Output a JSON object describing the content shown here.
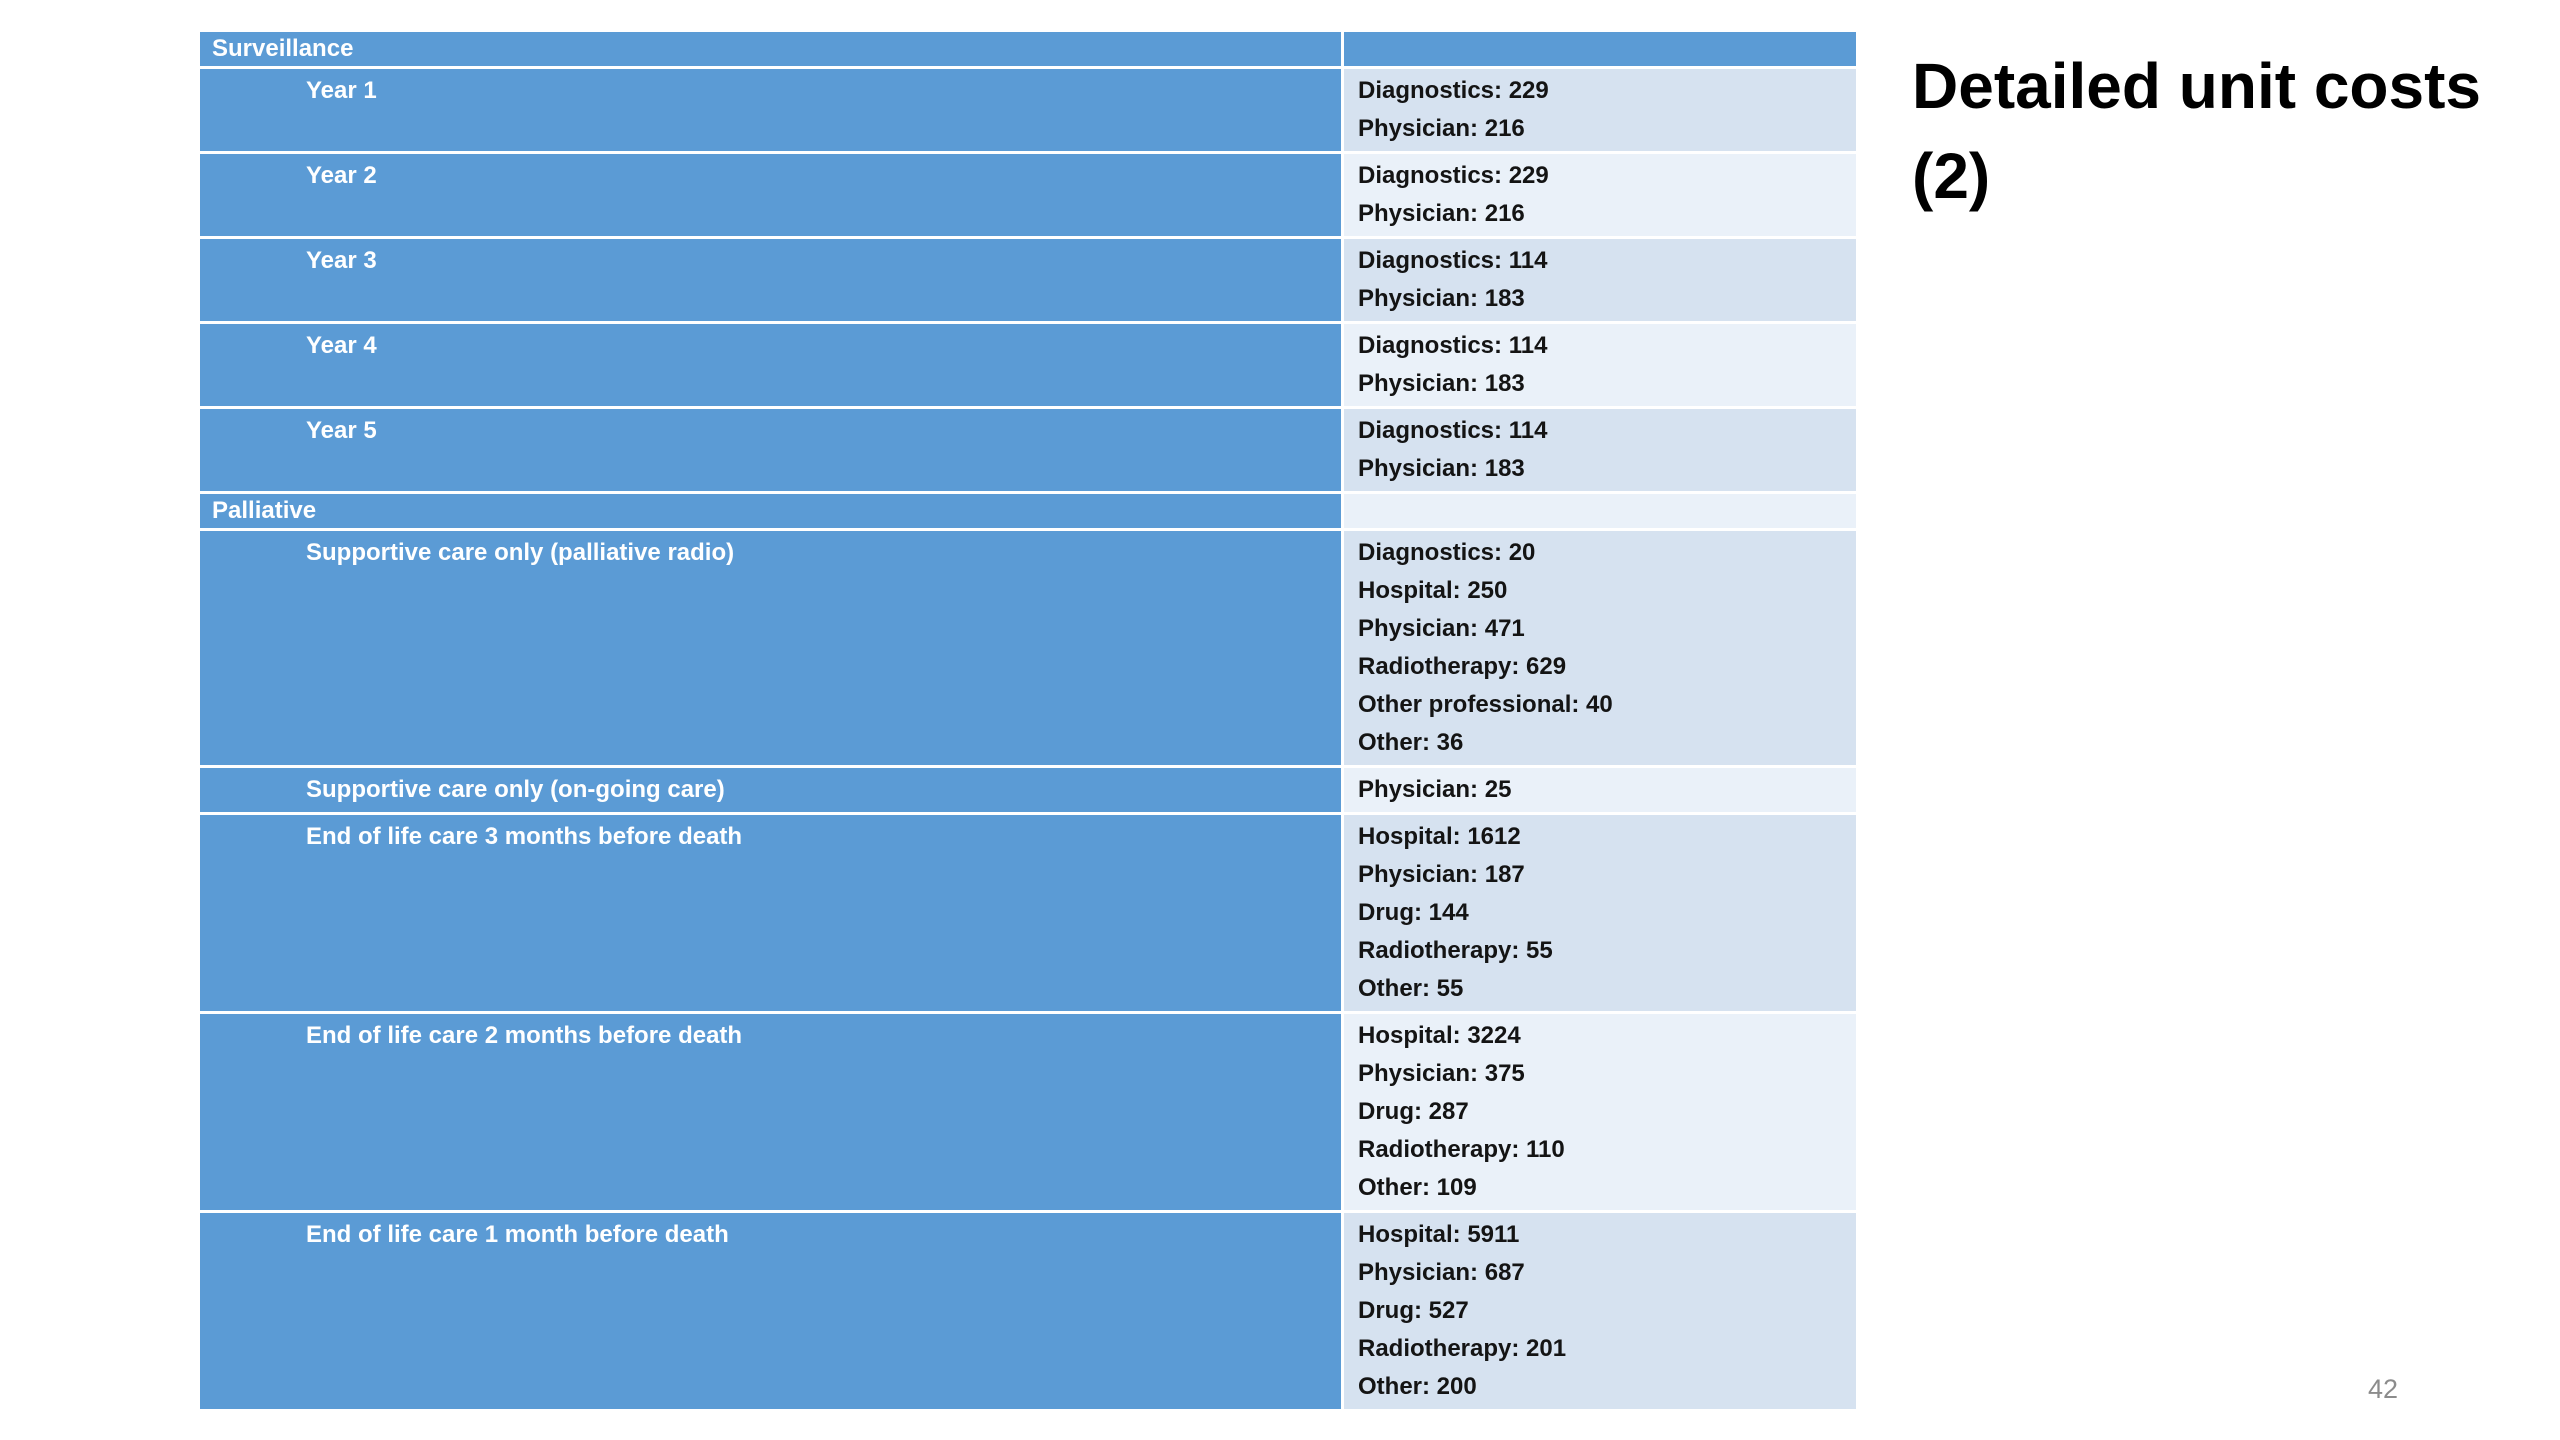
{
  "title": "Detailed unit costs (2)",
  "page_number": "42",
  "colors": {
    "header_blue": "#5b9bd5",
    "band_dark": "#d6e2f0",
    "band_light": "#eaf1f9",
    "text_dark": "#141414",
    "page_number_gray": "#8c8c8c"
  },
  "table": {
    "rows": [
      {
        "type": "section",
        "label": "Surveillance",
        "values": []
      },
      {
        "type": "item",
        "label": "Year 1",
        "values": [
          {
            "category": "Diagnostics",
            "amount": 229
          },
          {
            "category": "Physician",
            "amount": 216
          }
        ]
      },
      {
        "type": "item",
        "label": "Year 2",
        "values": [
          {
            "category": "Diagnostics",
            "amount": 229
          },
          {
            "category": "Physician",
            "amount": 216
          }
        ]
      },
      {
        "type": "item",
        "label": "Year 3",
        "values": [
          {
            "category": "Diagnostics",
            "amount": 114
          },
          {
            "category": "Physician",
            "amount": 183
          }
        ]
      },
      {
        "type": "item",
        "label": "Year 4",
        "values": [
          {
            "category": "Diagnostics",
            "amount": 114
          },
          {
            "category": "Physician",
            "amount": 183
          }
        ]
      },
      {
        "type": "item",
        "label": "Year 5",
        "values": [
          {
            "category": "Diagnostics",
            "amount": 114
          },
          {
            "category": "Physician",
            "amount": 183
          }
        ]
      },
      {
        "type": "section",
        "label": "Palliative",
        "values": []
      },
      {
        "type": "item",
        "label": "Supportive care only (palliative radio)",
        "values": [
          {
            "category": "Diagnostics",
            "amount": 20
          },
          {
            "category": "Hospital",
            "amount": 250
          },
          {
            "category": "Physician",
            "amount": 471
          },
          {
            "category": "Radiotherapy",
            "amount": 629
          },
          {
            "category": "Other professional",
            "amount": 40
          },
          {
            "category": "Other",
            "amount": 36
          }
        ]
      },
      {
        "type": "item",
        "label": "Supportive care only (on-going care)",
        "values": [
          {
            "category": "Physician",
            "amount": 25
          }
        ]
      },
      {
        "type": "item",
        "label": "End of life care 3 months before death",
        "values": [
          {
            "category": "Hospital",
            "amount": 1612
          },
          {
            "category": "Physician",
            "amount": 187
          },
          {
            "category": "Drug",
            "amount": 144
          },
          {
            "category": "Radiotherapy",
            "amount": 55
          },
          {
            "category": "Other",
            "amount": 55
          }
        ]
      },
      {
        "type": "item",
        "label": "End of life care 2 months before death",
        "values": [
          {
            "category": "Hospital",
            "amount": 3224
          },
          {
            "category": "Physician",
            "amount": 375
          },
          {
            "category": "Drug",
            "amount": 287
          },
          {
            "category": "Radiotherapy",
            "amount": 110
          },
          {
            "category": "Other",
            "amount": 109
          }
        ]
      },
      {
        "type": "item",
        "label": "End of life care 1 month before death",
        "values": [
          {
            "category": "Hospital",
            "amount": 5911
          },
          {
            "category": "Physician",
            "amount": 687
          },
          {
            "category": "Drug",
            "amount": 527
          },
          {
            "category": "Radiotherapy",
            "amount": 201
          },
          {
            "category": "Other",
            "amount": 200
          }
        ]
      }
    ]
  }
}
